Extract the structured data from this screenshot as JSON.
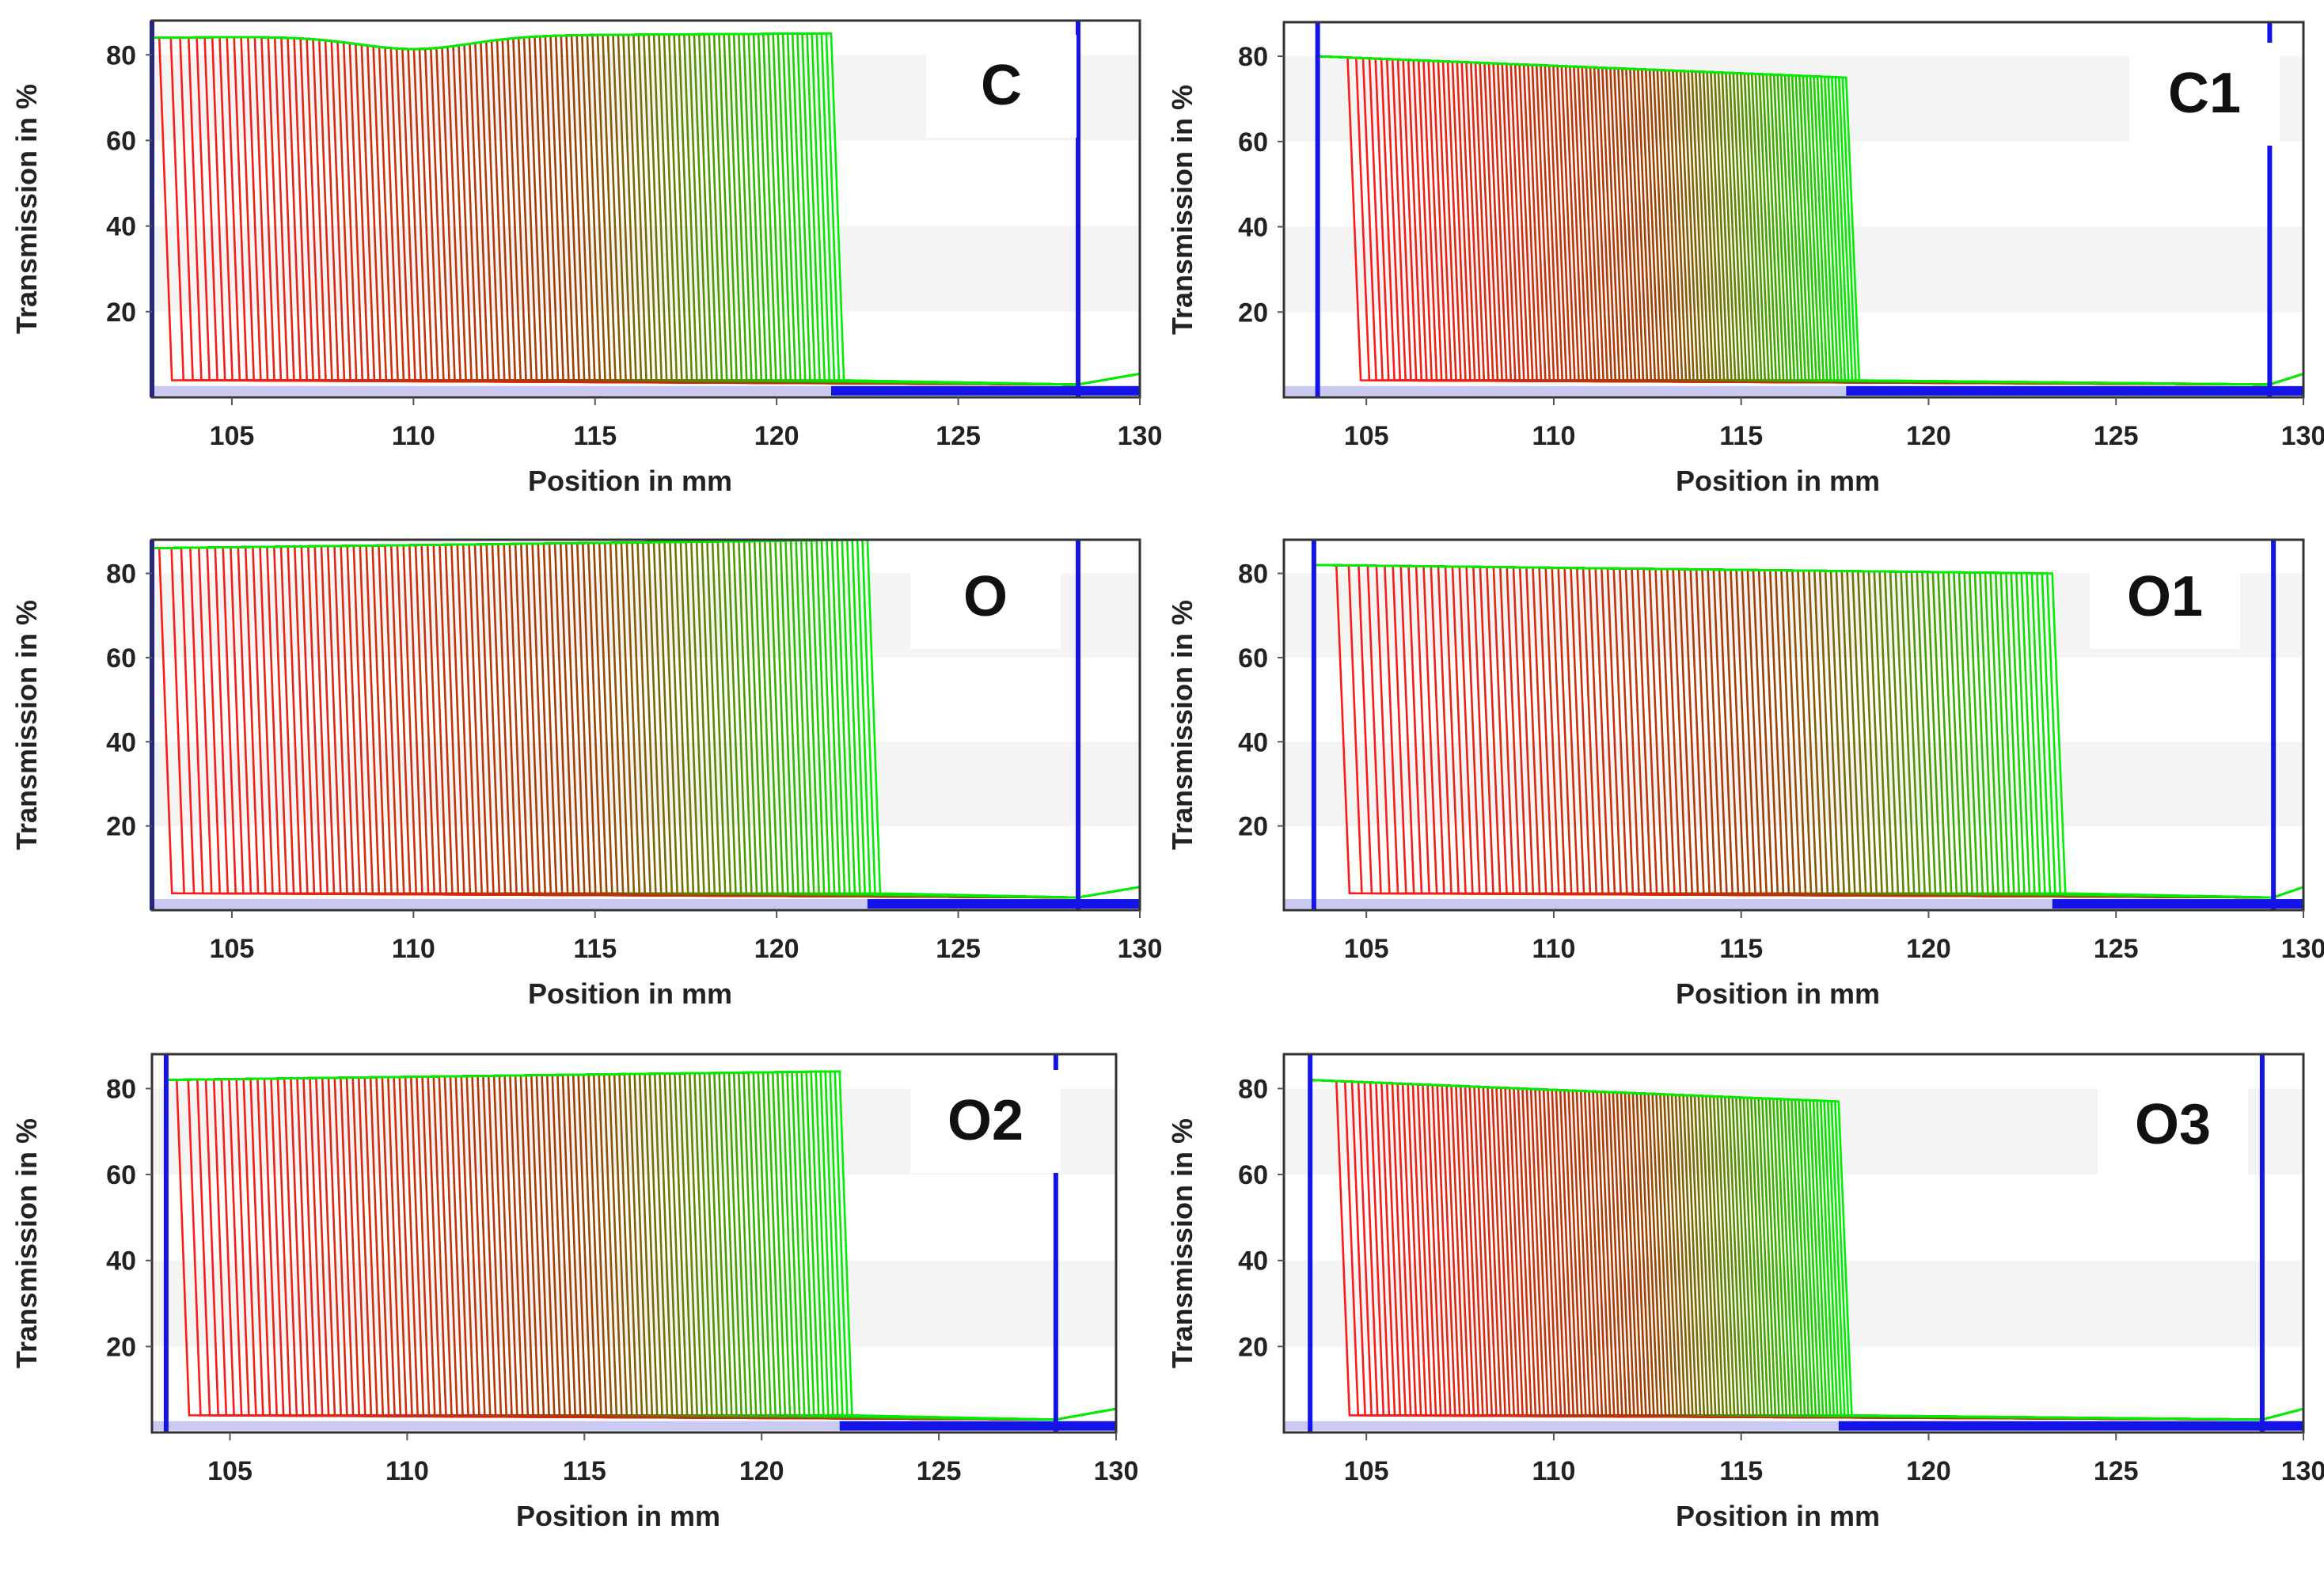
{
  "chart_data": [
    {
      "type": "line",
      "label": "C",
      "xlabel": "Position in mm",
      "ylabel": "Transmission in %",
      "xlim": [
        102.8,
        130
      ],
      "ylim": [
        0,
        88
      ],
      "xticks": [
        105,
        110,
        115,
        120,
        125,
        130
      ],
      "yticks": [
        20,
        40,
        60,
        80
      ],
      "meniscus_mm": 102.8,
      "bottom_mm": 128.3,
      "plateau_start_pct": 84,
      "plateau_end_pct": 85,
      "dip_pct": 81,
      "front_start_mm": 103,
      "front_end_mm": 121.5,
      "profile_count": 120,
      "base_pct": 3
    },
    {
      "type": "line",
      "label": "C1",
      "xlabel": "Position in mm",
      "ylabel": "Transmission in %",
      "xlim": [
        102.8,
        130
      ],
      "ylim": [
        0,
        88
      ],
      "xticks": [
        105,
        110,
        115,
        120,
        125,
        130
      ],
      "yticks": [
        20,
        40,
        60,
        80
      ],
      "meniscus_mm": 103.7,
      "bottom_mm": 129.1,
      "plateau_start_pct": 80,
      "plateau_end_pct": 75,
      "front_start_mm": 104.5,
      "front_end_mm": 117.8,
      "profile_count": 120,
      "base_pct": 3
    },
    {
      "type": "line",
      "label": "O",
      "xlabel": "Position in mm",
      "ylabel": "Transmission in %",
      "xlim": [
        102.8,
        130
      ],
      "ylim": [
        0,
        88
      ],
      "xticks": [
        105,
        110,
        115,
        120,
        125,
        130
      ],
      "yticks": [
        20,
        40,
        60,
        80
      ],
      "meniscus_mm": 102.8,
      "bottom_mm": 128.3,
      "plateau_start_pct": 86,
      "plateau_end_pct": 88,
      "front_start_mm": 103,
      "front_end_mm": 122.5,
      "profile_count": 120,
      "base_pct": 3
    },
    {
      "type": "line",
      "label": "O1",
      "xlabel": "Position in mm",
      "ylabel": "Transmission in %",
      "xlim": [
        102.8,
        130
      ],
      "ylim": [
        0,
        88
      ],
      "xticks": [
        105,
        110,
        115,
        120,
        125,
        130
      ],
      "yticks": [
        20,
        40,
        60,
        80
      ],
      "meniscus_mm": 103.6,
      "bottom_mm": 129.2,
      "plateau_start_pct": 82,
      "plateau_end_pct": 80,
      "front_start_mm": 104.2,
      "front_end_mm": 123.3,
      "profile_count": 120,
      "base_pct": 3
    },
    {
      "type": "line",
      "label": "O2",
      "xlabel": "Position in mm",
      "ylabel": "Transmission in %",
      "xlim": [
        102.8,
        130
      ],
      "ylim": [
        0,
        88
      ],
      "xticks": [
        105,
        110,
        115,
        120,
        125,
        130
      ],
      "yticks": [
        20,
        40,
        60,
        80
      ],
      "meniscus_mm": 103.2,
      "bottom_mm": 128.3,
      "plateau_start_pct": 82,
      "plateau_end_pct": 84,
      "front_start_mm": 103.5,
      "front_end_mm": 122.2,
      "profile_count": 120,
      "base_pct": 3
    },
    {
      "type": "line",
      "label": "O3",
      "xlabel": "Position in mm",
      "ylabel": "Transmission in %",
      "xlim": [
        102.8,
        130
      ],
      "ylim": [
        0,
        88
      ],
      "xticks": [
        105,
        110,
        115,
        120,
        125,
        130
      ],
      "yticks": [
        20,
        40,
        60,
        80
      ],
      "meniscus_mm": 103.5,
      "bottom_mm": 128.9,
      "plateau_start_pct": 82,
      "plateau_end_pct": 77,
      "front_start_mm": 104.2,
      "front_end_mm": 117.6,
      "profile_count": 120,
      "base_pct": 3
    }
  ],
  "colors": {
    "early_profile": "#ff1a1a",
    "late_profile": "#00ee00",
    "mid_profile": "#a04000",
    "marker_line": "#1414e6",
    "axis_frame": "#333333",
    "grid_band": "#f4f4f4"
  }
}
